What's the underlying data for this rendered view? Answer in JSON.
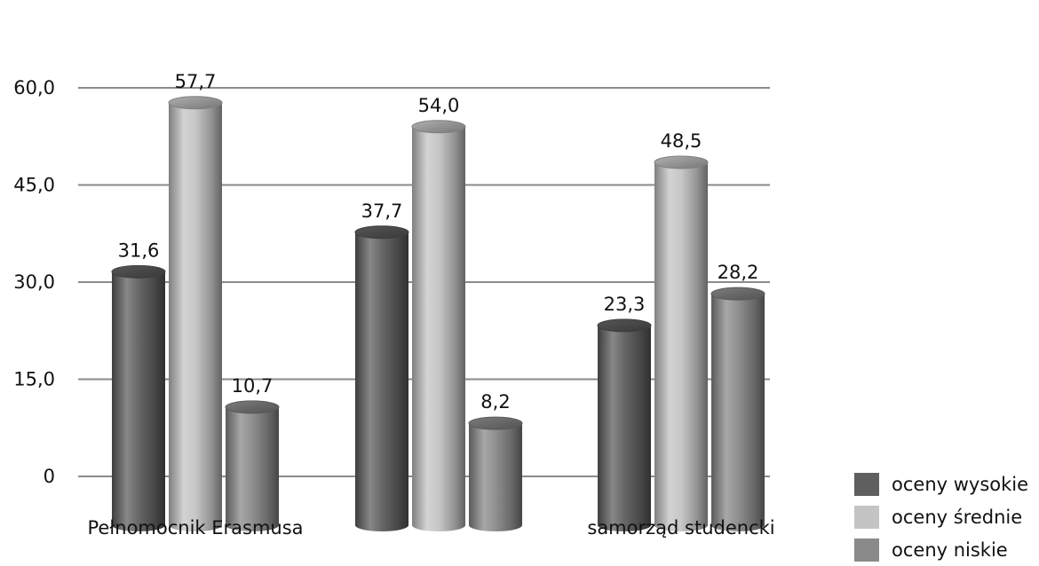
{
  "chart_data": {
    "type": "bar",
    "categories": [
      "Pełnomocnik Erasmusa",
      "",
      "samorząd studencki"
    ],
    "series": [
      {
        "name": "oceny wysokie",
        "values": [
          31.6,
          37.7,
          23.3
        ],
        "color": "#5f5f5f"
      },
      {
        "name": "oceny średnie",
        "values": [
          57.7,
          54.0,
          48.5
        ],
        "color": "#c4c4c4"
      },
      {
        "name": "oceny niskie",
        "values": [
          10.7,
          8.2,
          28.2
        ],
        "color": "#8a8a8a"
      }
    ],
    "value_labels": [
      [
        "31,6",
        "57,7",
        "10,7"
      ],
      [
        "37,7",
        "54,0",
        "8,2"
      ],
      [
        "23,3",
        "48,5",
        "28,2"
      ]
    ],
    "y_ticks": [
      "0",
      "15,0",
      "30,0",
      "45,0",
      "60,0"
    ],
    "ylim": [
      0,
      60
    ],
    "grid": true,
    "legend_position": "bottom-right",
    "title": "",
    "xlabel": "",
    "ylabel": ""
  }
}
